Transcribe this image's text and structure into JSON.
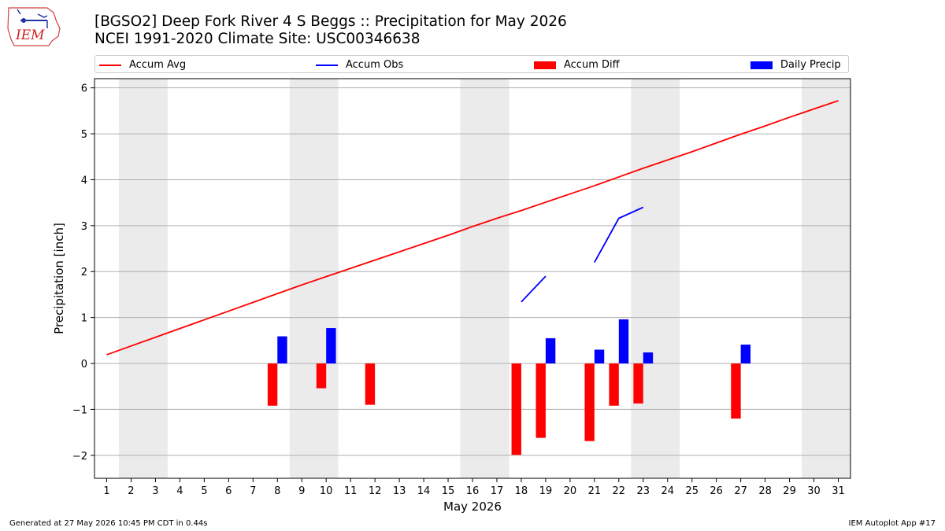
{
  "header": {
    "title_line1": "[BGSO2] Deep Fork River 4 S Beggs :: Precipitation for May 2026",
    "title_line2": "NCEI 1991-2020 Climate Site: USC00346638",
    "logo_text": "IEM"
  },
  "legend": {
    "items": [
      {
        "label": "Accum Avg",
        "kind": "line",
        "color": "#ff0000"
      },
      {
        "label": "Accum Obs",
        "kind": "line",
        "color": "#0000ff"
      },
      {
        "label": "Accum Diff",
        "kind": "box",
        "color": "#ff0000"
      },
      {
        "label": "Daily Precip",
        "kind": "box",
        "color": "#0000ff"
      }
    ]
  },
  "footer": {
    "left": "Generated at 27 May 2026 10:45 PM CDT in 0.44s",
    "right": "IEM Autoplot App #17"
  },
  "chart_data": {
    "type": "bar",
    "xlabel": "May 2026",
    "ylabel": "Precipitation [inch]",
    "xlim": [
      0.5,
      31.5
    ],
    "ylim": [
      -2.5,
      6.2
    ],
    "yticks": [
      -2,
      -1,
      0,
      1,
      2,
      3,
      4,
      5,
      6
    ],
    "ytick_labels": [
      "−2",
      "−1",
      "0",
      "1",
      "2",
      "3",
      "4",
      "5",
      "6"
    ],
    "categories": [
      "1",
      "2",
      "3",
      "4",
      "5",
      "6",
      "7",
      "8",
      "9",
      "10",
      "11",
      "12",
      "13",
      "14",
      "15",
      "16",
      "17",
      "18",
      "19",
      "20",
      "21",
      "22",
      "23",
      "24",
      "25",
      "26",
      "27",
      "28",
      "29",
      "30",
      "31"
    ],
    "grid": "horizontal",
    "weekend_bands": [
      [
        1.5,
        3.5
      ],
      [
        8.5,
        10.5
      ],
      [
        15.5,
        17.5
      ],
      [
        22.5,
        24.5
      ],
      [
        29.5,
        31.5
      ]
    ],
    "weekend_color": "#ebebeb",
    "series": [
      {
        "name": "Accum Avg",
        "kind": "line",
        "color": "#ff0000",
        "x": [
          1,
          2,
          3,
          4,
          5,
          6,
          7,
          8,
          9,
          10,
          11,
          12,
          13,
          14,
          15,
          16,
          17,
          18,
          19,
          20,
          21,
          22,
          23,
          24,
          25,
          26,
          27,
          28,
          29,
          30,
          31
        ],
        "values": [
          0.19,
          0.38,
          0.57,
          0.76,
          0.95,
          1.14,
          1.33,
          1.52,
          1.71,
          1.89,
          2.07,
          2.25,
          2.43,
          2.61,
          2.79,
          2.98,
          3.16,
          3.33,
          3.51,
          3.69,
          3.87,
          4.06,
          4.25,
          4.43,
          4.61,
          4.8,
          4.99,
          5.17,
          5.36,
          5.54,
          5.72
        ]
      },
      {
        "name": "Accum Obs",
        "kind": "line",
        "color": "#0000ff",
        "segments": [
          {
            "x": [
              18,
              19
            ],
            "values": [
              1.34,
              1.9
            ]
          },
          {
            "x": [
              21,
              22,
              23
            ],
            "values": [
              2.2,
              3.16,
              3.4
            ]
          }
        ]
      },
      {
        "name": "Accum Diff",
        "kind": "bar",
        "color": "#ff0000",
        "x": [
          8,
          10,
          12,
          18,
          19,
          21,
          22,
          23,
          27
        ],
        "values": [
          -0.92,
          -0.54,
          -0.9,
          -1.99,
          -1.62,
          -1.69,
          -0.92,
          -0.87,
          -1.2
        ]
      },
      {
        "name": "Daily Precip",
        "kind": "bar",
        "color": "#0000ff",
        "x": [
          8,
          10,
          19,
          21,
          22,
          23,
          27
        ],
        "values": [
          0.59,
          0.77,
          0.55,
          0.3,
          0.96,
          0.24,
          0.41
        ]
      }
    ]
  }
}
